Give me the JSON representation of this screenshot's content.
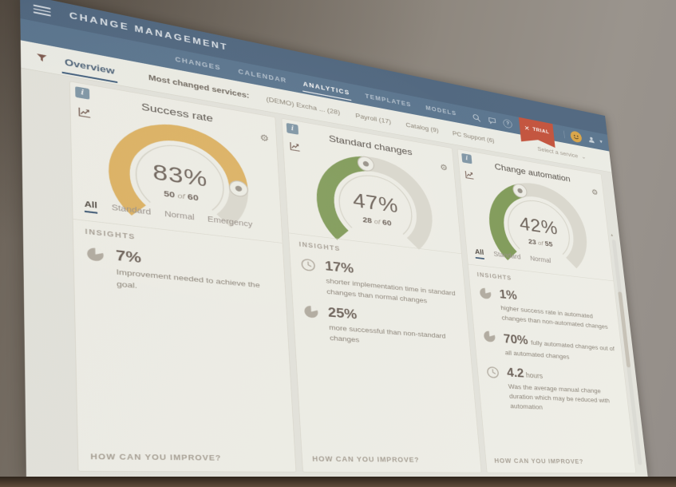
{
  "window": {
    "title": "CHANGE MANAGEMENT"
  },
  "nav": {
    "tabs": [
      {
        "label": "CHANGES",
        "active": false
      },
      {
        "label": "CALENDAR",
        "active": false
      },
      {
        "label": "ANALYTICS",
        "active": true
      },
      {
        "label": "TEMPLATES",
        "active": false
      },
      {
        "label": "MODELS",
        "active": false
      }
    ],
    "trial_label": "TRIAL"
  },
  "toolbar": {
    "overview_tab": "Overview",
    "services_label": "Most changed services:",
    "services": [
      "(DEMO) Excha ... (28)",
      "Payroll (17)",
      "Catalog (9)",
      "PC Support (6)"
    ],
    "service_select": "Select a service"
  },
  "glyphs": {
    "gear": "⚙",
    "chevron_down": "▾",
    "select_chevron": "⌄",
    "help": "?",
    "trial_x": "✕",
    "info": "i",
    "scroll_up": "▴"
  },
  "colors": {
    "amber": "#e2b35a",
    "green": "#7e9d54",
    "track": "#dcdbd1",
    "header_blue": "#4c6784",
    "nav_blue": "#567593",
    "trial_red": "#cd5038",
    "active_underline": "#3c5a7b"
  },
  "cards": [
    {
      "title": "Success rate",
      "gauge": {
        "percent": 83,
        "display": "83%",
        "count": "50",
        "of": "of",
        "total": "60",
        "color": "#e2b35a"
      },
      "tabs": [
        {
          "label": "All",
          "active": true
        },
        {
          "label": "Standard",
          "active": false
        },
        {
          "label": "Normal",
          "active": false
        },
        {
          "label": "Emergency",
          "active": false
        }
      ],
      "insights_label": "INSIGHTS",
      "insights": [
        {
          "icon": "pie",
          "value": "7%",
          "text": "Improvement needed to achieve the goal.",
          "layout": "stacked"
        }
      ],
      "improve_label": "HOW CAN YOU IMPROVE?"
    },
    {
      "title": "Standard changes",
      "gauge": {
        "percent": 47,
        "display": "47%",
        "count": "28",
        "of": "of",
        "total": "60",
        "color": "#7e9d54"
      },
      "tabs": [],
      "insights_label": "INSIGHTS",
      "insights": [
        {
          "icon": "clock",
          "value": "17%",
          "text": "shorter implementation time in standard changes than normal changes",
          "layout": "stacked"
        },
        {
          "icon": "pie",
          "value": "25%",
          "text": "more successful than non-standard changes",
          "layout": "stacked"
        }
      ],
      "improve_label": "HOW CAN YOU IMPROVE?"
    },
    {
      "title": "Change automation",
      "gauge": {
        "percent": 42,
        "display": "42%",
        "count": "23",
        "of": "of",
        "total": "55",
        "color": "#7e9d54"
      },
      "tabs": [
        {
          "label": "All",
          "active": true
        },
        {
          "label": "Standard",
          "active": false
        },
        {
          "label": "Normal",
          "active": false
        }
      ],
      "insights_label": "INSIGHTS",
      "insights": [
        {
          "icon": "pie",
          "value": "1%",
          "text": "higher success rate in automated changes than non-automated changes",
          "layout": "stacked"
        },
        {
          "icon": "pie",
          "value": "70%",
          "text": "fully automated changes out of all automated changes",
          "layout": "inline"
        },
        {
          "icon": "clock",
          "value": "4.2",
          "unit": "hours",
          "text": "Was the average manual change duration which may be reduced with automation",
          "layout": "stacked"
        }
      ],
      "improve_label": "HOW CAN YOU IMPROVE?"
    }
  ]
}
